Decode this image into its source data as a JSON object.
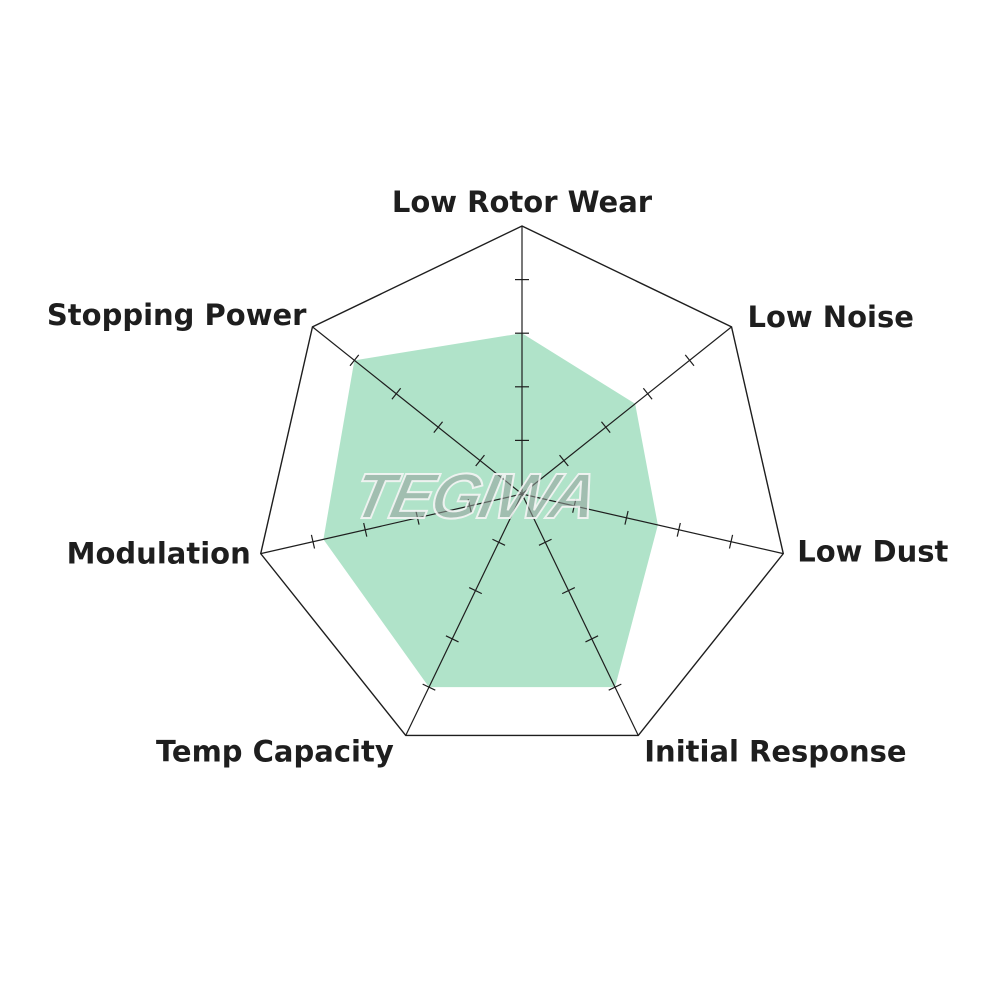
{
  "chart_data": {
    "type": "radar",
    "title": "",
    "axes": [
      "Low Rotor Wear",
      "Low Noise",
      "Low Dust",
      "Initial Response",
      "Temp Capacity",
      "Modulation",
      "Stopping Power"
    ],
    "values": [
      3,
      2.7,
      2.6,
      4,
      4,
      3.8,
      4
    ],
    "range": [
      0,
      5
    ],
    "ticks": [
      1,
      2,
      3,
      4
    ],
    "fill_color": "#b0e3c9",
    "line_color": "#1e1e1e",
    "watermark": "TEGIWA"
  }
}
